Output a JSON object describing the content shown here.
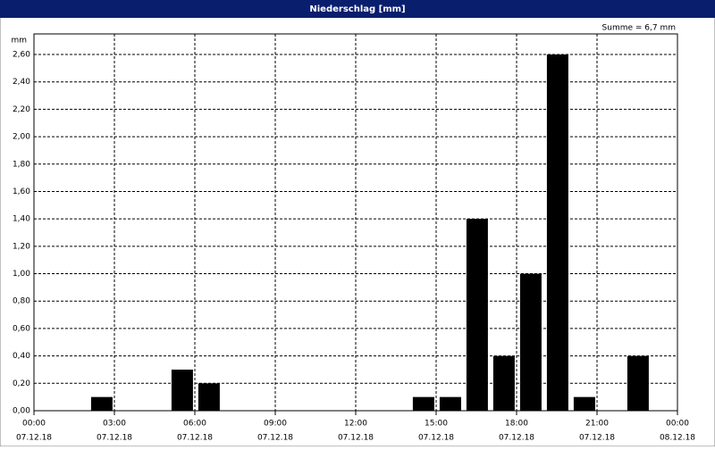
{
  "chart_data": {
    "type": "bar",
    "title": "Niederschlag [mm]",
    "ylabel": "mm",
    "annotation": "Summe = 6,7 mm",
    "x": [
      3,
      6,
      7,
      15,
      16,
      17,
      18,
      19,
      20,
      21,
      23
    ],
    "values": [
      0.1,
      0.3,
      0.2,
      0.1,
      0.1,
      1.4,
      0.4,
      1.0,
      2.6,
      0.1,
      0.4
    ],
    "color": "#000000",
    "xlim": [
      0,
      24
    ],
    "xticks": [
      {
        "value": 0,
        "label": "00:00"
      },
      {
        "value": 3,
        "label": "03:00"
      },
      {
        "value": 6,
        "label": "06:00"
      },
      {
        "value": 9,
        "label": "09:00"
      },
      {
        "value": 12,
        "label": "12:00"
      },
      {
        "value": 15,
        "label": "15:00"
      },
      {
        "value": 18,
        "label": "18:00"
      },
      {
        "value": 21,
        "label": "21:00"
      },
      {
        "value": 24,
        "label": "00:00"
      }
    ],
    "xtick_dates": [
      "07.12.18",
      "07.12.18",
      "07.12.18",
      "07.12.18",
      "07.12.18",
      "07.12.18",
      "07.12.18",
      "07.12.18",
      "08.12.18"
    ],
    "ylim": [
      0,
      2.75
    ],
    "yticks": [
      {
        "value": 0,
        "label": "0,00"
      },
      {
        "value": 0.2,
        "label": "0,20"
      },
      {
        "value": 0.4,
        "label": "0,40"
      },
      {
        "value": 0.6,
        "label": "0,60"
      },
      {
        "value": 0.8,
        "label": "0,80"
      },
      {
        "value": 1.0,
        "label": "1,00"
      },
      {
        "value": 1.2,
        "label": "1,20"
      },
      {
        "value": 1.4,
        "label": "1,40"
      },
      {
        "value": 1.6,
        "label": "1,60"
      },
      {
        "value": 1.8,
        "label": "1,80"
      },
      {
        "value": 2.0,
        "label": "2,00"
      },
      {
        "value": 2.2,
        "label": "2,20"
      },
      {
        "value": 2.4,
        "label": "2,40"
      },
      {
        "value": 2.6,
        "label": "2,60"
      }
    ],
    "grid": true
  }
}
